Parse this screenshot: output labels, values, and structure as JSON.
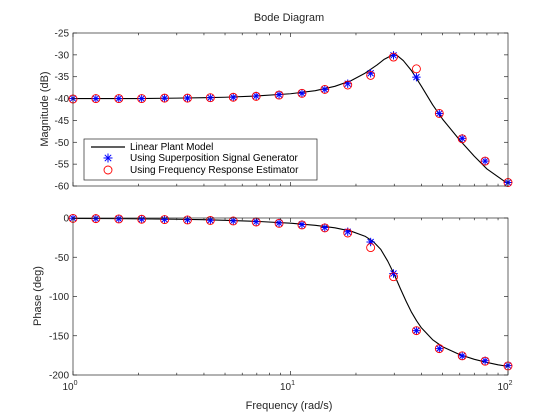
{
  "chart_data": [
    {
      "type": "line",
      "title": "Bode Diagram",
      "xlabel": "",
      "ylabel": "Magnitude (dB)",
      "xscale": "log",
      "xlim": [
        1,
        100
      ],
      "ylim": [
        -60,
        -25
      ],
      "xticks": [
        1,
        10,
        100
      ],
      "yticks": [
        -25,
        -30,
        -35,
        -40,
        -45,
        -50,
        -55,
        -60
      ],
      "ytick_labels": [
        "-25",
        "-30",
        "-35",
        "-40",
        "-45",
        "-50",
        "-55",
        "-60"
      ],
      "legend_position": "lower-left",
      "grid": false,
      "series": [
        {
          "name": "Linear Plant Model",
          "style": "solid-line",
          "color": "#000000",
          "x": [
            1,
            1.5,
            2,
            3,
            4,
            5,
            7,
            10,
            13,
            16,
            19,
            22,
            25,
            27,
            29,
            30,
            31,
            33,
            36,
            40,
            45,
            50,
            60,
            70,
            80,
            90,
            100
          ],
          "y": [
            -40,
            -40,
            -40,
            -39.9,
            -39.8,
            -39.7,
            -39.4,
            -38.9,
            -38.2,
            -37.2,
            -35.9,
            -34.2,
            -32.3,
            -31,
            -30.2,
            -30,
            -30.2,
            -31.3,
            -33.6,
            -37.2,
            -41.4,
            -44.7,
            -49.5,
            -53.2,
            -56.1,
            -57.9,
            -59.5
          ]
        },
        {
          "name": "Using Superposition Signal Generator",
          "style": "asterisk",
          "color": "#0000ff",
          "x": [
            1,
            1.274,
            1.624,
            2.069,
            2.637,
            3.36,
            4.281,
            5.456,
            6.952,
            8.859,
            11.29,
            14.38,
            18.33,
            23.36,
            29.76,
            37.93,
            48.33,
            61.58,
            78.48,
            100
          ],
          "y": [
            -40,
            -40,
            -40,
            -40,
            -39.9,
            -39.9,
            -39.8,
            -39.7,
            -39.4,
            -39.1,
            -38.8,
            -37.9,
            -36.6,
            -34.2,
            -30.1,
            -35.1,
            -43.4,
            -49.1,
            -54.3,
            -59.2
          ]
        },
        {
          "name": "Using Frequency Response Estimator",
          "style": "circle",
          "color": "#ff0000",
          "x": [
            1,
            1.274,
            1.624,
            2.069,
            2.637,
            3.36,
            4.281,
            5.456,
            6.952,
            8.859,
            11.29,
            14.38,
            18.33,
            23.36,
            29.76,
            37.93,
            48.33,
            61.58,
            78.48,
            100
          ],
          "y": [
            -40.1,
            -40,
            -40,
            -40,
            -39.9,
            -39.9,
            -39.8,
            -39.7,
            -39.5,
            -39.2,
            -38.8,
            -37.9,
            -36.9,
            -34.7,
            -30.5,
            -33.2,
            -43.4,
            -49.2,
            -54.3,
            -59.2
          ]
        }
      ]
    },
    {
      "type": "line",
      "title": "",
      "xlabel": "Frequency  (rad/s)",
      "ylabel": "Phase (deg)",
      "xscale": "log",
      "xlim": [
        1,
        100
      ],
      "ylim": [
        -200,
        0
      ],
      "xticks": [
        1,
        10,
        100
      ],
      "xtick_labels": [
        {
          "base": "10",
          "exp": "0"
        },
        {
          "base": "10",
          "exp": "1"
        },
        {
          "base": "10",
          "exp": "2"
        }
      ],
      "yticks": [
        0,
        -50,
        -100,
        -150,
        -200
      ],
      "ytick_labels": [
        "0",
        "-50",
        "-100",
        "-150",
        "-200"
      ],
      "grid": false,
      "series": [
        {
          "name": "Linear Plant Model",
          "style": "solid-line",
          "color": "#000000",
          "x": [
            1,
            1.5,
            2,
            3,
            4,
            5,
            7,
            10,
            13,
            16,
            19,
            22,
            24,
            26,
            28,
            30,
            32,
            34,
            36,
            38,
            40,
            45,
            50,
            60,
            70,
            80,
            90,
            100
          ],
          "y": [
            -0.5,
            -0.8,
            -1,
            -1.6,
            -2.2,
            -2.9,
            -4.3,
            -6.6,
            -9.3,
            -12.5,
            -16.8,
            -23.2,
            -30,
            -40,
            -55,
            -72,
            -90,
            -106,
            -120,
            -131,
            -140,
            -155,
            -164,
            -174,
            -180,
            -184,
            -187,
            -189
          ]
        },
        {
          "name": "Using Superposition Signal Generator",
          "style": "asterisk",
          "color": "#0000ff",
          "x": [
            1,
            1.274,
            1.624,
            2.069,
            2.637,
            3.36,
            4.281,
            5.456,
            6.952,
            8.859,
            11.29,
            14.38,
            18.33,
            23.36,
            29.76,
            37.93,
            48.33,
            61.58,
            78.48,
            100
          ],
          "y": [
            -0.3,
            -0.6,
            -1,
            -1.5,
            -1.8,
            -2.3,
            -2.9,
            -3.6,
            -4.7,
            -6.3,
            -8.3,
            -12.1,
            -17.5,
            -30.6,
            -70.7,
            -143.5,
            -166.4,
            -175.6,
            -181.8,
            -188
          ]
        },
        {
          "name": "Using Frequency Response Estimator",
          "style": "circle",
          "color": "#ff0000",
          "x": [
            1,
            1.274,
            1.624,
            2.069,
            2.637,
            3.36,
            4.281,
            5.456,
            6.952,
            8.859,
            11.29,
            14.38,
            18.33,
            23.36,
            29.76,
            37.93,
            48.33,
            61.58,
            78.48,
            100
          ],
          "y": [
            -0.5,
            -0.8,
            -1.2,
            -1.6,
            -2,
            -2.5,
            -3.1,
            -3.8,
            -5.1,
            -6.8,
            -8.9,
            -12.6,
            -19.1,
            -37.7,
            -74.8,
            -143.5,
            -166.4,
            -175.6,
            -182.4,
            -188.5
          ]
        }
      ]
    }
  ]
}
